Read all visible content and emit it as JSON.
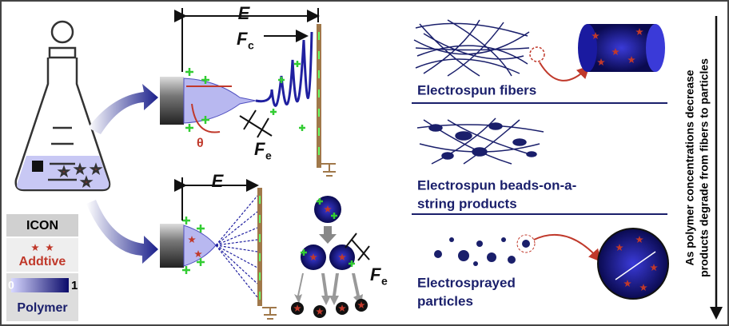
{
  "legend": {
    "title": "ICON",
    "additive": "Addtive",
    "scale_min": 0,
    "scale_max": 1,
    "polymer": "Polymer"
  },
  "electrospinning": {
    "distance": "E",
    "coulomb_force": {
      "symbol": "F",
      "subscript": "c"
    },
    "electric_force": {
      "symbol": "F",
      "subscript": "e"
    },
    "angle": "θ"
  },
  "electrospraying": {
    "distance": "E",
    "electric_force": {
      "symbol": "F",
      "subscript": "e"
    }
  },
  "products": [
    {
      "lines": [
        "Electrospun fibers"
      ]
    },
    {
      "lines": [
        "Electrospun beads-on-a-",
        "string products"
      ]
    },
    {
      "lines": [
        "Electrosprayed",
        "particles"
      ]
    }
  ],
  "trend": {
    "lines": [
      "As polymer concentrations decrease",
      "products degrade from fibers to particles"
    ]
  }
}
